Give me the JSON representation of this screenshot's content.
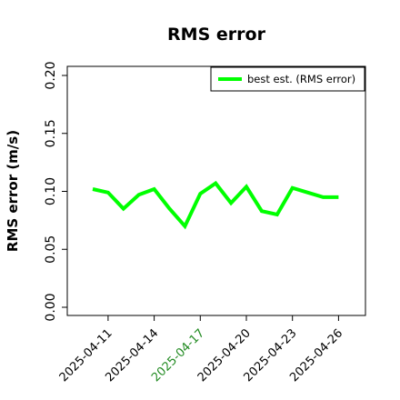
{
  "chart_data": {
    "type": "line",
    "title": "RMS error",
    "xlabel": "",
    "ylabel": "RMS error (m/s)",
    "ylim": [
      0.0,
      0.21
    ],
    "yticks": [
      "0.00",
      "0.05",
      "0.10",
      "0.15",
      "0.20"
    ],
    "xticks": [
      {
        "label": "2025-04-11",
        "color": "#000000"
      },
      {
        "label": "2025-04-14",
        "color": "#000000"
      },
      {
        "label": "2025-04-17",
        "color": "#228B22"
      },
      {
        "label": "2025-04-20",
        "color": "#000000"
      },
      {
        "label": "2025-04-23",
        "color": "#000000"
      },
      {
        "label": "2025-04-26",
        "color": "#000000"
      }
    ],
    "x": [
      "2025-04-10",
      "2025-04-11",
      "2025-04-12",
      "2025-04-13",
      "2025-04-14",
      "2025-04-15",
      "2025-04-16",
      "2025-04-17",
      "2025-04-18",
      "2025-04-19",
      "2025-04-20",
      "2025-04-21",
      "2025-04-22",
      "2025-04-23",
      "2025-04-24",
      "2025-04-25",
      "2025-04-26"
    ],
    "series": [
      {
        "name": "best est. (RMS error)",
        "color": "#00ff00",
        "values": [
          0.102,
          0.099,
          0.085,
          0.097,
          0.102,
          0.085,
          0.07,
          0.098,
          0.107,
          0.09,
          0.104,
          0.083,
          0.08,
          0.103,
          0.099,
          0.095,
          0.095
        ]
      }
    ],
    "legend_position": "top-right",
    "grid": false
  }
}
